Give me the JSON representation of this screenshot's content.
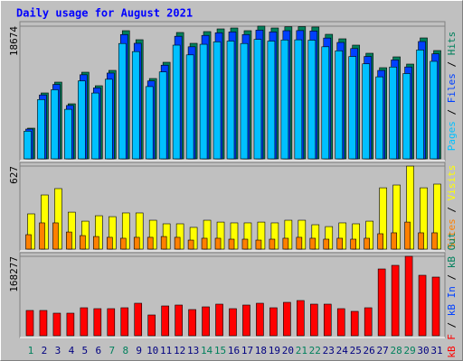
{
  "chart_data": [
    {
      "type": "bar",
      "title": "Daily usage for August 2021",
      "categories": [
        "1",
        "2",
        "3",
        "4",
        "5",
        "6",
        "7",
        "8",
        "9",
        "10",
        "11",
        "12",
        "13",
        "14",
        "15",
        "16",
        "17",
        "18",
        "19",
        "20",
        "21",
        "22",
        "23",
        "24",
        "25",
        "26",
        "27",
        "28",
        "29",
        "30",
        "31"
      ],
      "category_colors": [
        "#00805c",
        "#000080",
        "#000080",
        "#000080",
        "#000080",
        "#000080",
        "#00805c",
        "#00805c",
        "#000080",
        "#000080",
        "#000080",
        "#000080",
        "#000080",
        "#00805c",
        "#00805c",
        "#000080",
        "#000080",
        "#000080",
        "#000080",
        "#000080",
        "#00805c",
        "#00805c",
        "#000080",
        "#000080",
        "#000080",
        "#000080",
        "#000080",
        "#00805c",
        "#00805c",
        "#000080",
        "#000080"
      ],
      "legend_separator": " / ",
      "ylim": [
        0,
        19050
      ],
      "yticks": [
        18674
      ],
      "series": [
        {
          "name": "Pages",
          "color": "#00c0ff",
          "values": [
            3890,
            8340,
            9720,
            6970,
            10970,
            9260,
            11200,
            16230,
            15090,
            10170,
            12230,
            16000,
            14630,
            16120,
            16460,
            16570,
            16230,
            16810,
            16570,
            16730,
            16750,
            16700,
            15770,
            15200,
            14400,
            13370,
            11540,
            12920,
            12000,
            15320,
            13720
          ]
        },
        {
          "name": "Files",
          "color": "#0040ff",
          "values": [
            4190,
            8990,
            10470,
            7510,
            11830,
            9980,
            12070,
            17490,
            16260,
            10960,
            13180,
            17250,
            15770,
            17370,
            17740,
            17860,
            17490,
            18110,
            17860,
            18030,
            18050,
            17990,
            17000,
            16380,
            15520,
            14410,
            12440,
            13920,
            12930,
            16510,
            14780
          ]
        },
        {
          "name": "Hits",
          "color": "#00805c",
          "values": [
            4318,
            9271,
            10795,
            7747,
            12192,
            10287,
            12446,
            18034,
            16764,
            11303,
            13589,
            17780,
            16256,
            17907,
            18288,
            18415,
            18034,
            18674,
            18415,
            18590,
            18610,
            18550,
            17526,
            16891,
            16002,
            14859,
            12827,
            14351,
            13335,
            17018,
            15240
          ]
        }
      ]
    },
    {
      "type": "bar",
      "legend_separator": " / ",
      "ylim": [
        0,
        641
      ],
      "yticks": [
        627
      ],
      "series": [
        {
          "name": "Sites",
          "color": "#ff8000",
          "values": [
            109,
            198,
            198,
            129,
            102,
            95,
            89,
            82,
            89,
            89,
            95,
            89,
            68,
            82,
            82,
            75,
            75,
            68,
            75,
            82,
            89,
            82,
            75,
            82,
            75,
            82,
            116,
            123,
            204,
            123,
            123
          ]
        },
        {
          "name": "Visits",
          "color": "#ffff00",
          "values": [
            266,
            409,
            457,
            279,
            211,
            252,
            245,
            273,
            273,
            218,
            191,
            191,
            164,
            218,
            204,
            198,
            198,
            204,
            198,
            218,
            218,
            184,
            170,
            198,
            191,
            211,
            463,
            484,
            627,
            463,
            491
          ]
        }
      ]
    },
    {
      "type": "bar",
      "legend_separator": " / ",
      "ylim": [
        0,
        172100
      ],
      "yticks": [
        168277
      ],
      "series": [
        {
          "name": "kB F",
          "color": "#ff0000",
          "values": [
            53540,
            53540,
            47800,
            47800,
            59270,
            57360,
            57360,
            59270,
            68830,
            43980,
            63100,
            65010,
            55450,
            61180,
            66920,
            57360,
            65010,
            68830,
            59270,
            70740,
            74570,
            66920,
            66920,
            57360,
            51620,
            59270,
            141480,
            149130,
            168277,
            128100,
            124280
          ]
        },
        {
          "name": "kB In",
          "color": "#0040ff"
        },
        {
          "name": "kB Out",
          "color": "#00805c"
        }
      ]
    }
  ]
}
